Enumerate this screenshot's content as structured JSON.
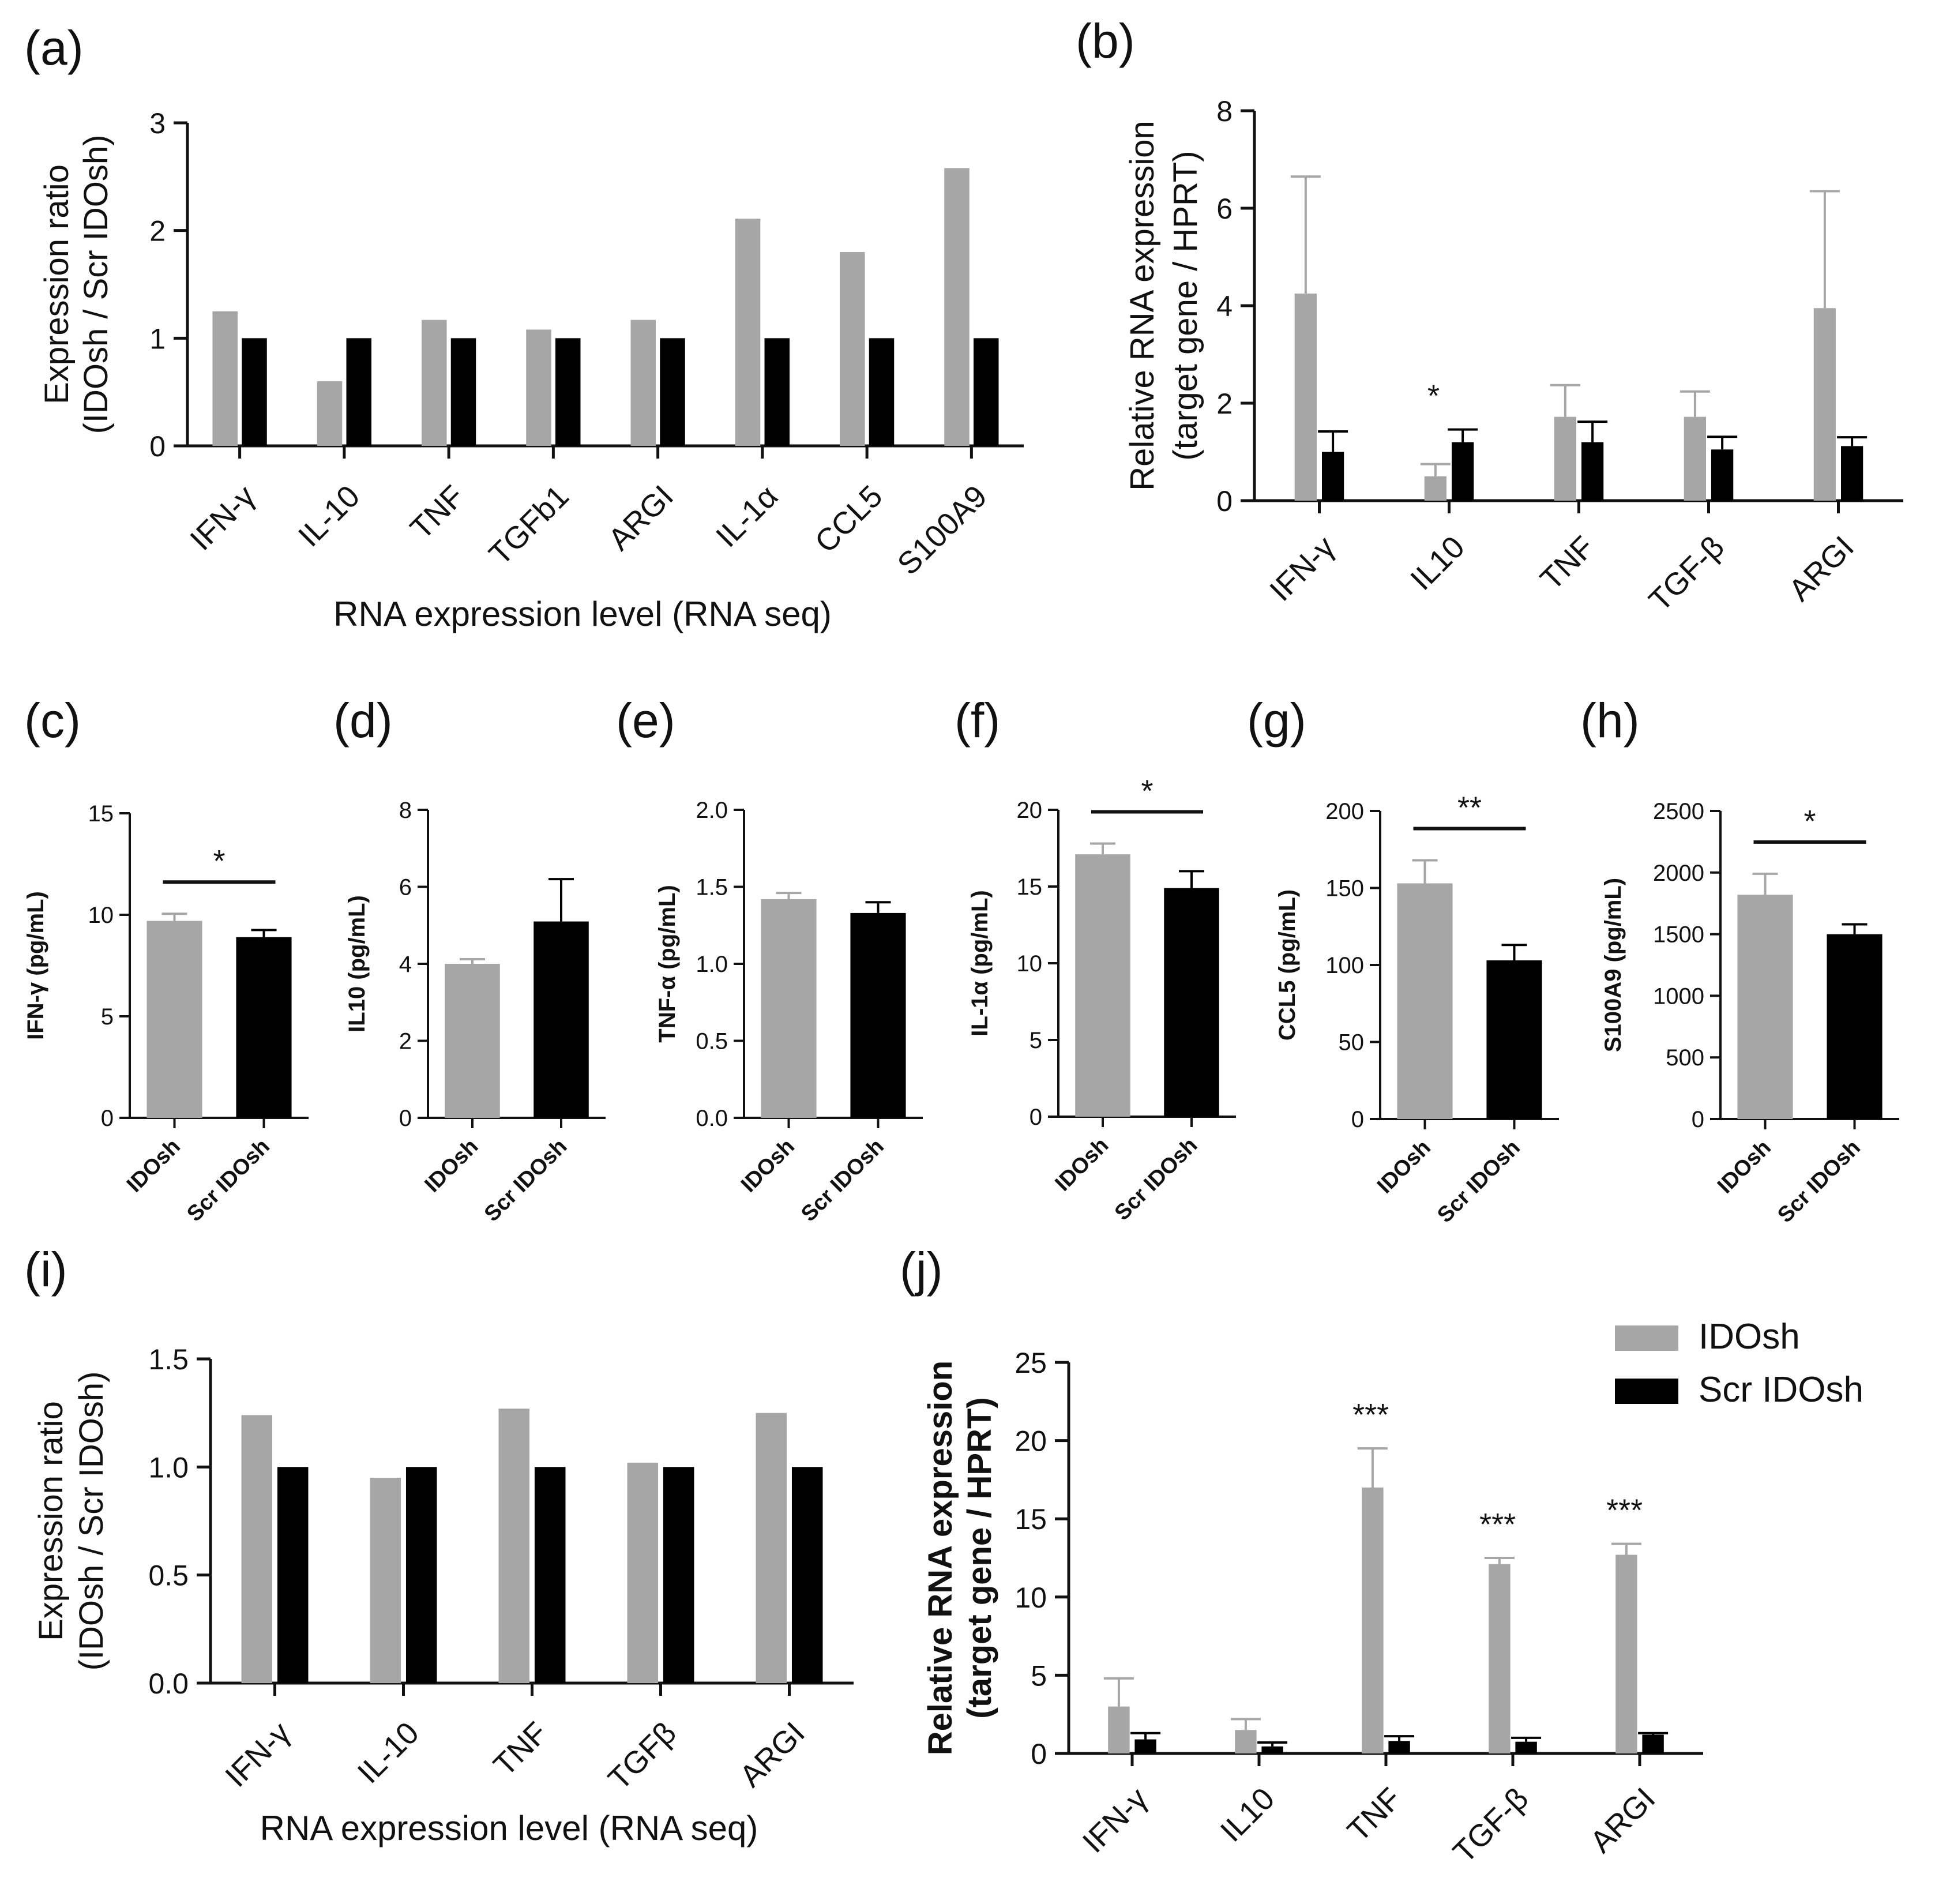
{
  "colors": {
    "idosh": "#a6a6a6",
    "scr": "#000000",
    "axis": "#111111"
  },
  "legend": {
    "items": [
      "IDOsh",
      "Scr IDOsh"
    ],
    "placement": "top-right"
  },
  "chart_data": [
    {
      "panel": "(a)",
      "type": "bar",
      "categories": [
        "IFN-γ",
        "IL-10",
        "TNF",
        "TGFb1",
        "ARGI",
        "IL-1α",
        "CCL5",
        "S100A9"
      ],
      "series": [
        {
          "name": "IDOsh",
          "values": [
            1.25,
            0.6,
            1.17,
            1.08,
            1.17,
            2.11,
            1.8,
            2.58
          ]
        },
        {
          "name": "Scr IDOsh",
          "values": [
            1,
            1,
            1,
            1,
            1,
            1,
            1,
            1
          ]
        }
      ],
      "ylabel_lines": [
        "Expression ratio",
        "(IDOsh / Scr  IDOsh)"
      ],
      "xlabel": "RNA expression level (RNA seq)",
      "ylim": [
        0,
        3
      ],
      "yticks": [
        "0",
        "1",
        "2",
        "3"
      ],
      "grid": false
    },
    {
      "panel": "(b)",
      "type": "bar",
      "categories": [
        "IFN-γ",
        "IL10",
        "TNF",
        "TGF-β",
        "ARGI"
      ],
      "series": [
        {
          "name": "IDOsh",
          "values": [
            4.25,
            0.5,
            1.72,
            1.72,
            3.95
          ],
          "errors": [
            2.4,
            0.25,
            0.65,
            0.52,
            2.4
          ]
        },
        {
          "name": "Scr IDOsh",
          "values": [
            1.0,
            1.2,
            1.2,
            1.05,
            1.12
          ],
          "errors": [
            0.42,
            0.26,
            0.42,
            0.26,
            0.18
          ]
        }
      ],
      "ylabel_lines": [
        "Relative RNA expression",
        "(target gene / HPRT)"
      ],
      "xlabel": "",
      "ylim": [
        0,
        8
      ],
      "yticks": [
        "0",
        "2",
        "4",
        "6",
        "8"
      ],
      "stars": [
        {
          "category": 1,
          "text": "*"
        }
      ],
      "grid": false
    },
    {
      "panel": "(c)",
      "type": "bar",
      "categories": [
        "IDOsh",
        "Scr IDOsh"
      ],
      "values": [
        9.7,
        8.9
      ],
      "errors": [
        0.35,
        0.35
      ],
      "ylabel": "IFN-γ (pg/mL)",
      "ylim": [
        0,
        15
      ],
      "yticks": [
        "0",
        "5",
        "10",
        "15"
      ],
      "sig": "*"
    },
    {
      "panel": "(d)",
      "type": "bar",
      "categories": [
        "IDOsh",
        "Scr IDOsh"
      ],
      "values": [
        4.0,
        5.1
      ],
      "errors": [
        0.12,
        1.1
      ],
      "ylabel": "IL10 (pg/mL)",
      "ylim": [
        0,
        8
      ],
      "yticks": [
        "0",
        "2",
        "4",
        "6",
        "8"
      ],
      "sig": ""
    },
    {
      "panel": "(e)",
      "type": "bar",
      "categories": [
        "IDOsh",
        "Scr IDOsh"
      ],
      "values": [
        1.42,
        1.33
      ],
      "errors": [
        0.04,
        0.07
      ],
      "ylabel": "TNF-α (pg/mL)",
      "ylim": [
        0,
        2
      ],
      "yticks": [
        "0.0",
        "0.5",
        "1.0",
        "1.5",
        "2.0"
      ],
      "sig": ""
    },
    {
      "panel": "(f)",
      "type": "bar",
      "categories": [
        "IDOsh",
        "Scr IDOsh"
      ],
      "values": [
        17.1,
        14.9
      ],
      "errors": [
        0.7,
        1.1
      ],
      "ylabel": "IL-1α (pg/mL)",
      "ylim": [
        0,
        20
      ],
      "yticks": [
        "0",
        "5",
        "10",
        "15",
        "20"
      ],
      "sig": "*"
    },
    {
      "panel": "(g)",
      "type": "bar",
      "categories": [
        "IDOsh",
        "Scr IDOsh"
      ],
      "values": [
        153,
        103
      ],
      "errors": [
        15,
        10
      ],
      "ylabel": "CCL5 (pg/mL)",
      "ylim": [
        0,
        200
      ],
      "yticks": [
        "0",
        "50",
        "100",
        "150",
        "200"
      ],
      "sig": "**"
    },
    {
      "panel": "(h)",
      "type": "bar",
      "categories": [
        "IDOsh",
        "Scr IDOsh"
      ],
      "values": [
        1820,
        1500
      ],
      "errors": [
        170,
        80
      ],
      "ylabel": "S100A9 (pg/mL)",
      "ylim": [
        0,
        2500
      ],
      "yticks": [
        "0",
        "500",
        "1000",
        "1500",
        "2000",
        "2500"
      ],
      "sig": "*"
    },
    {
      "panel": "(i)",
      "type": "bar",
      "categories": [
        "IFN-γ",
        "IL-10",
        "TNF",
        "TGFβ",
        "ARGI"
      ],
      "series": [
        {
          "name": "IDOsh",
          "values": [
            1.24,
            0.95,
            1.27,
            1.02,
            1.25
          ]
        },
        {
          "name": "Scr IDOsh",
          "values": [
            1,
            1,
            1,
            1,
            1
          ]
        }
      ],
      "ylabel_lines": [
        "Expression ratio",
        "(IDOsh / Scr  IDOsh)"
      ],
      "xlabel": "RNA expression level (RNA seq)",
      "ylim": [
        0,
        1.5
      ],
      "yticks": [
        "0.0",
        "0.5",
        "1.0",
        "1.5"
      ],
      "grid": false
    },
    {
      "panel": "(j)",
      "type": "bar",
      "categories": [
        "IFN-γ",
        "IL10",
        "TNF",
        "TGF-β",
        "ARGI"
      ],
      "series": [
        {
          "name": "IDOsh",
          "values": [
            3.0,
            1.5,
            17.0,
            12.1,
            12.7
          ],
          "errors": [
            1.8,
            0.7,
            2.5,
            0.4,
            0.7
          ]
        },
        {
          "name": "Scr IDOsh",
          "values": [
            0.9,
            0.45,
            0.8,
            0.75,
            1.2
          ],
          "errors": [
            0.4,
            0.25,
            0.3,
            0.25,
            0.1
          ]
        }
      ],
      "ylabel_lines": [
        "Relative RNA expression",
        "(target gene / HPRT)"
      ],
      "xlabel": "",
      "ylim": [
        0,
        25
      ],
      "yticks": [
        "0",
        "5",
        "10",
        "15",
        "20",
        "25"
      ],
      "stars": [
        {
          "category": 2,
          "text": "***"
        },
        {
          "category": 3,
          "text": "***"
        },
        {
          "category": 4,
          "text": "***"
        }
      ],
      "grid": false
    }
  ]
}
